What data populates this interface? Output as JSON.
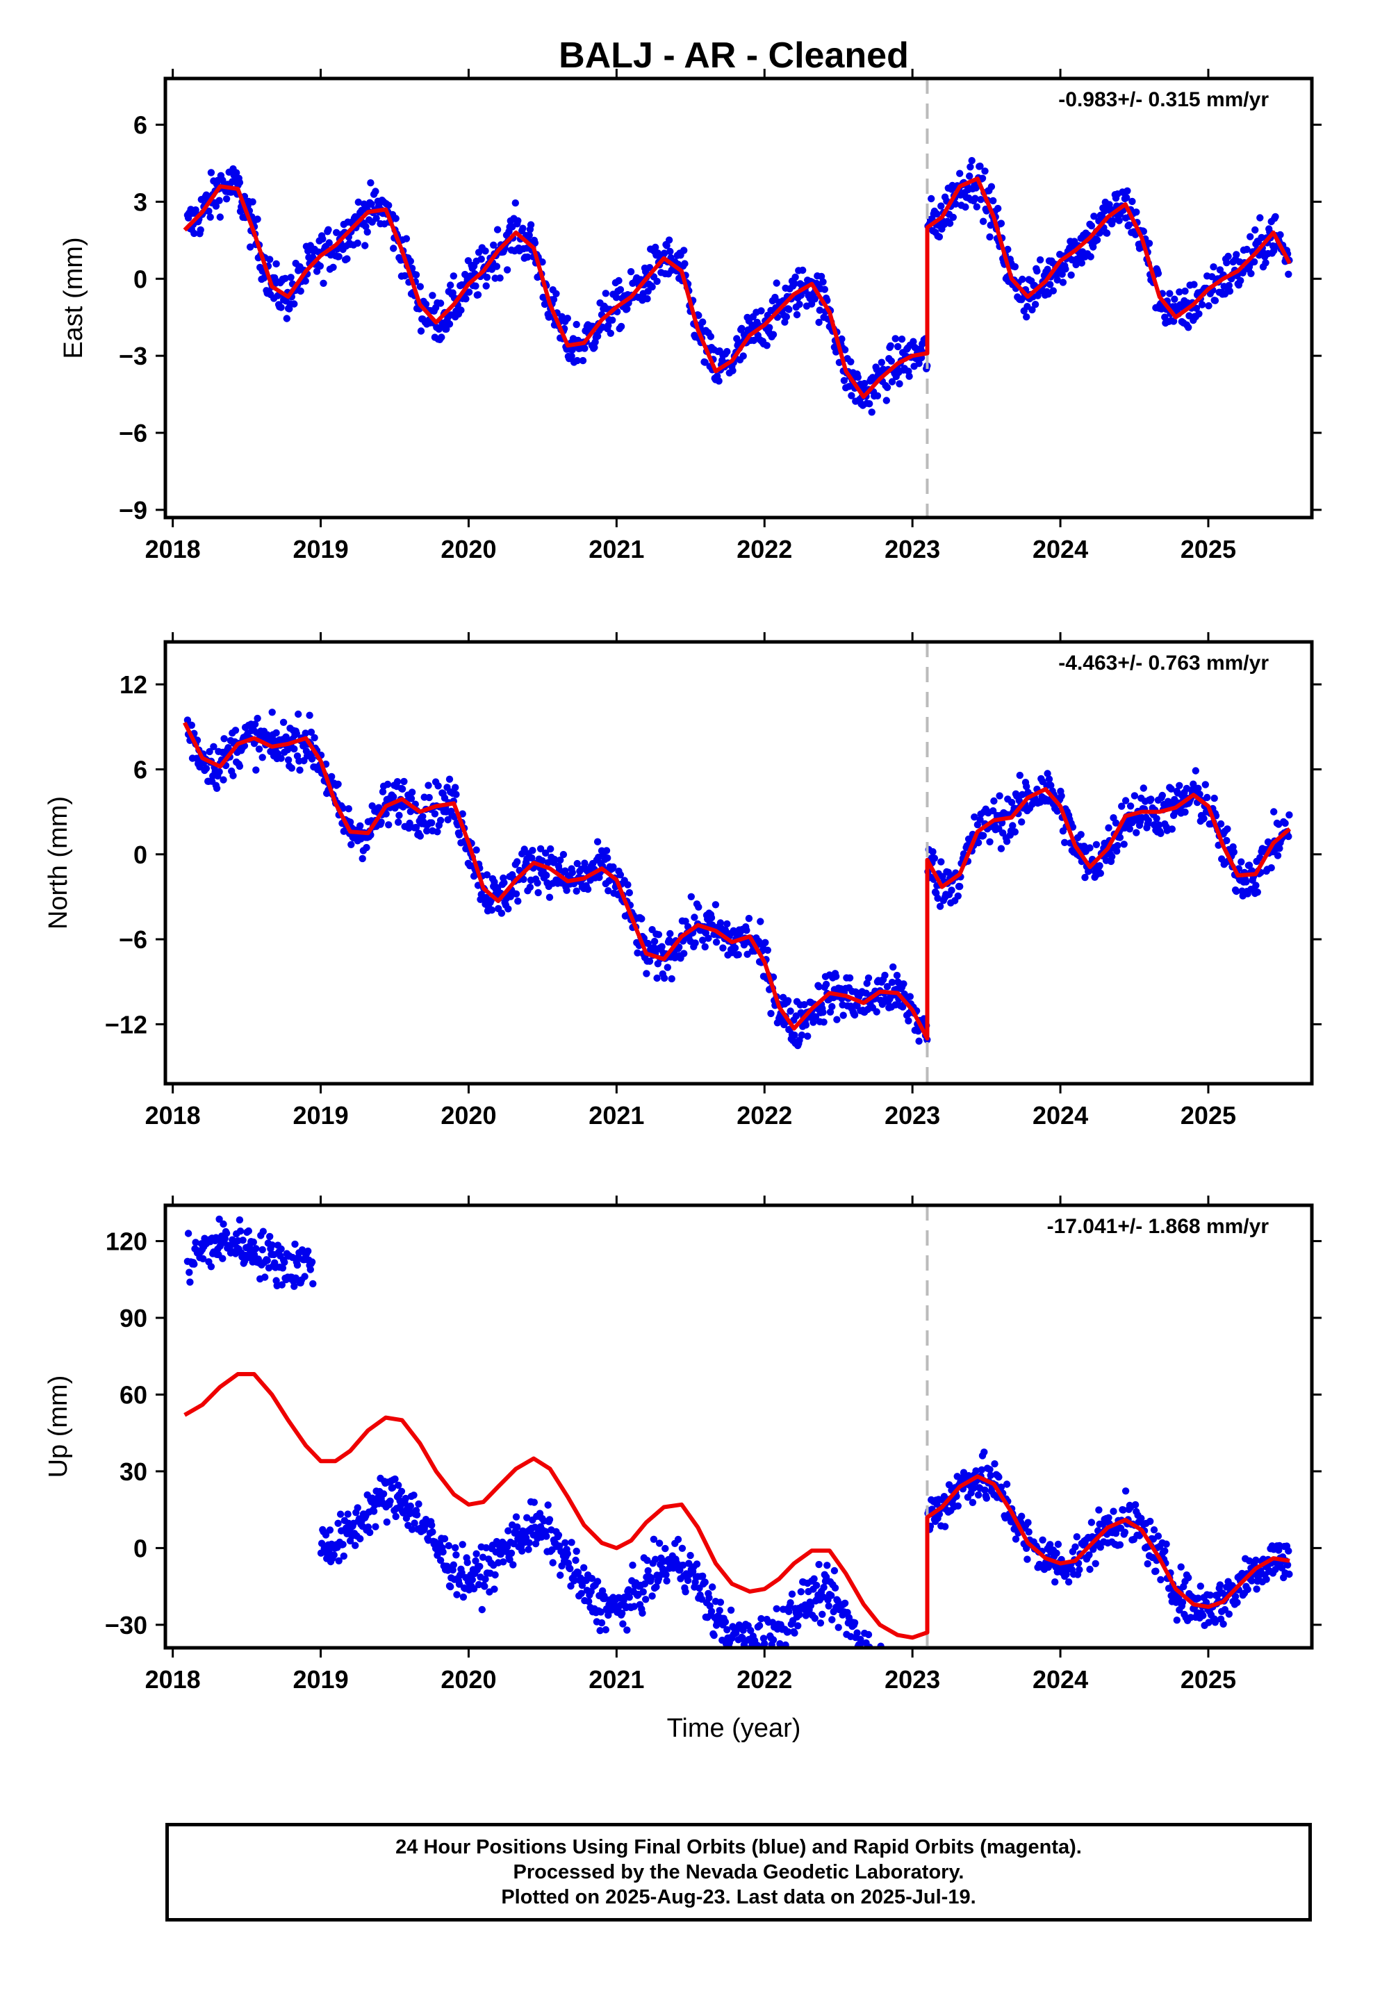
{
  "title": "BALJ  - AR - Cleaned",
  "xlabel": "Time (year)",
  "footer": {
    "line1": "24 Hour Positions Using Final Orbits (blue) and Rapid Orbits (magenta).",
    "line2": "Processed by the Nevada Geodetic Laboratory.",
    "line3": "Plotted on 2025-Aug-23. Last data on 2025-Jul-19."
  },
  "colors": {
    "points": "#0000ee",
    "model": "#ee0000",
    "break_line": "#bbbbbb"
  },
  "chart_data": [
    {
      "type": "scatter",
      "component": "East",
      "ylabel": "East (mm)",
      "rate_label": "-0.983+/- 0.315 mm/yr",
      "xlim": [
        2017.95,
        2025.7
      ],
      "ylim": [
        -9.3,
        7.8
      ],
      "yticks": [
        6,
        3,
        0,
        -3,
        -6,
        -9
      ],
      "xticks": [
        2018,
        2019,
        2020,
        2021,
        2022,
        2023,
        2024,
        2025
      ],
      "break_epoch": 2023.1,
      "model": {
        "x": [
          2018.08,
          2018.2,
          2018.32,
          2018.44,
          2018.55,
          2018.67,
          2018.78,
          2018.9,
          2019.0,
          2019.1,
          2019.2,
          2019.32,
          2019.44,
          2019.55,
          2019.67,
          2019.78,
          2019.9,
          2020.0,
          2020.1,
          2020.2,
          2020.32,
          2020.44,
          2020.55,
          2020.67,
          2020.78,
          2020.9,
          2021.0,
          2021.1,
          2021.2,
          2021.32,
          2021.44,
          2021.55,
          2021.67,
          2021.78,
          2021.9,
          2022.0,
          2022.1,
          2022.2,
          2022.32,
          2022.44,
          2022.55,
          2022.67,
          2022.78,
          2022.9,
          2023.0,
          2023.1,
          2023.1,
          2023.2,
          2023.32,
          2023.44,
          2023.55,
          2023.67,
          2023.78,
          2023.9,
          2024.0,
          2024.1,
          2024.2,
          2024.32,
          2024.44,
          2024.55,
          2024.67,
          2024.78,
          2024.9,
          2025.0,
          2025.1,
          2025.2,
          2025.32,
          2025.44,
          2025.55
        ],
        "y": [
          1.9,
          2.6,
          3.6,
          3.5,
          1.8,
          -0.3,
          -0.7,
          0.3,
          0.9,
          1.3,
          1.9,
          2.6,
          2.7,
          1.1,
          -1.0,
          -1.7,
          -1.0,
          -0.2,
          0.3,
          1.1,
          1.8,
          1.2,
          -1.0,
          -2.6,
          -2.5,
          -1.6,
          -1.1,
          -0.7,
          0.0,
          0.8,
          0.3,
          -2.0,
          -3.6,
          -3.2,
          -2.2,
          -1.8,
          -1.2,
          -0.6,
          -0.2,
          -1.3,
          -3.6,
          -4.6,
          -3.9,
          -3.3,
          -3.0,
          -2.9,
          2.0,
          2.4,
          3.6,
          3.9,
          2.4,
          0.0,
          -0.7,
          -0.1,
          0.7,
          1.1,
          1.6,
          2.4,
          2.9,
          1.6,
          -0.7,
          -1.5,
          -1.0,
          -0.4,
          0.0,
          0.3,
          1.0,
          1.8,
          0.6
        ]
      }
    },
    {
      "type": "scatter",
      "component": "North",
      "ylabel": "North (mm)",
      "rate_label": "-4.463+/- 0.763 mm/yr",
      "xlim": [
        2017.95,
        2025.7
      ],
      "ylim": [
        -16.2,
        15.0
      ],
      "yticks": [
        12,
        6,
        0,
        -6,
        -12
      ],
      "xticks": [
        2018,
        2019,
        2020,
        2021,
        2022,
        2023,
        2024,
        2025
      ],
      "break_epoch": 2023.1,
      "model": {
        "x": [
          2018.08,
          2018.2,
          2018.32,
          2018.44,
          2018.55,
          2018.67,
          2018.78,
          2018.9,
          2019.0,
          2019.1,
          2019.2,
          2019.32,
          2019.44,
          2019.55,
          2019.67,
          2019.78,
          2019.9,
          2020.0,
          2020.1,
          2020.2,
          2020.32,
          2020.44,
          2020.55,
          2020.67,
          2020.78,
          2020.9,
          2021.0,
          2021.1,
          2021.2,
          2021.32,
          2021.44,
          2021.55,
          2021.67,
          2021.78,
          2021.9,
          2022.0,
          2022.1,
          2022.2,
          2022.32,
          2022.44,
          2022.55,
          2022.67,
          2022.78,
          2022.9,
          2023.0,
          2023.1,
          2023.1,
          2023.2,
          2023.32,
          2023.44,
          2023.55,
          2023.67,
          2023.78,
          2023.9,
          2024.0,
          2024.1,
          2024.2,
          2024.32,
          2024.44,
          2024.55,
          2024.67,
          2024.78,
          2024.9,
          2025.0,
          2025.1,
          2025.2,
          2025.32,
          2025.44,
          2025.55
        ],
        "y": [
          9.3,
          6.8,
          6.2,
          7.8,
          8.2,
          7.6,
          7.8,
          8.2,
          6.6,
          3.6,
          1.6,
          1.5,
          3.4,
          3.9,
          3.0,
          3.4,
          3.6,
          0.8,
          -2.4,
          -3.3,
          -1.8,
          -0.6,
          -1.0,
          -1.9,
          -1.7,
          -1.0,
          -1.8,
          -4.4,
          -7.0,
          -7.4,
          -5.8,
          -5.0,
          -5.4,
          -6.2,
          -5.8,
          -7.6,
          -10.8,
          -12.3,
          -10.9,
          -9.8,
          -10.0,
          -10.5,
          -9.7,
          -9.8,
          -11.0,
          -13.0,
          -0.4,
          -2.3,
          -1.4,
          1.6,
          2.4,
          2.6,
          4.0,
          4.6,
          3.4,
          0.6,
          -0.9,
          0.4,
          2.7,
          3.0,
          3.0,
          3.3,
          4.2,
          3.4,
          0.6,
          -1.5,
          -1.4,
          0.8,
          1.8
        ]
      }
    },
    {
      "type": "scatter",
      "component": "Up",
      "ylabel": "Up (mm)",
      "rate_label": "-17.041+/- 1.868 mm/yr",
      "xlim": [
        2017.95,
        2025.7
      ],
      "ylim": [
        -39,
        134
      ],
      "yticks": [
        120,
        90,
        60,
        30,
        0,
        -30
      ],
      "xticks": [
        2018,
        2019,
        2020,
        2021,
        2022,
        2023,
        2024,
        2025
      ],
      "break_epoch": 2023.1,
      "model": {
        "x": [
          2018.08,
          2018.2,
          2018.32,
          2018.44,
          2018.55,
          2018.67,
          2018.78,
          2018.9,
          2019.0,
          2019.1,
          2019.2,
          2019.32,
          2019.44,
          2019.55,
          2019.67,
          2019.78,
          2019.9,
          2020.0,
          2020.1,
          2020.2,
          2020.32,
          2020.44,
          2020.55,
          2020.67,
          2020.78,
          2020.9,
          2021.0,
          2021.1,
          2021.2,
          2021.32,
          2021.44,
          2021.55,
          2021.67,
          2021.78,
          2021.9,
          2022.0,
          2022.1,
          2022.2,
          2022.32,
          2022.44,
          2022.55,
          2022.67,
          2022.78,
          2022.9,
          2023.0,
          2023.1,
          2023.1,
          2023.2,
          2023.32,
          2023.44,
          2023.55,
          2023.67,
          2023.78,
          2023.9,
          2024.0,
          2024.1,
          2024.2,
          2024.32,
          2024.44,
          2024.55,
          2024.67,
          2024.78,
          2024.9,
          2025.0,
          2025.1,
          2025.2,
          2025.32,
          2025.44,
          2025.55
        ],
        "y": [
          52,
          56,
          63,
          68,
          68,
          60,
          50,
          40,
          34,
          34,
          38,
          46,
          51,
          50,
          41,
          30,
          21,
          17,
          18,
          24,
          31,
          35,
          31,
          20,
          9,
          2,
          0,
          3,
          10,
          16,
          17,
          8,
          -6,
          -14,
          -17,
          -16,
          -12,
          -6,
          -1,
          -1,
          -10,
          -22,
          -30,
          -34,
          -35,
          -33,
          12,
          16,
          24,
          28,
          25,
          14,
          2,
          -4,
          -6,
          -5,
          1,
          8,
          11,
          7,
          -4,
          -16,
          -22,
          -23,
          -21,
          -15,
          -8,
          -4,
          -5
        ]
      }
    }
  ]
}
